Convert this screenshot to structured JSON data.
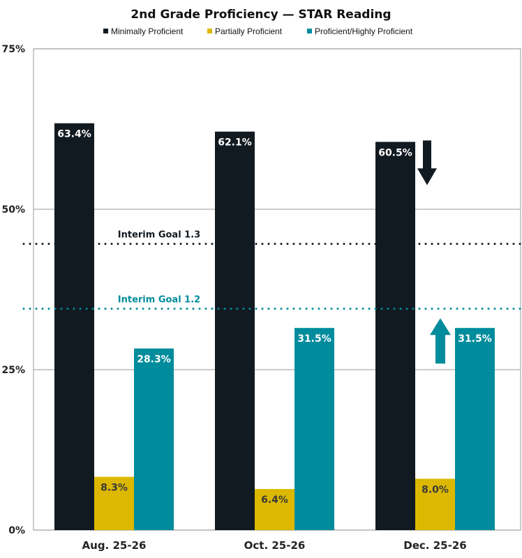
{
  "chart_data": {
    "type": "bar",
    "title": "2nd Grade Proficiency — STAR Reading",
    "categories": [
      "Aug. 25-26",
      "Oct. 25-26",
      "Dec. 25-26"
    ],
    "series": [
      {
        "name": "Minimally Proficient",
        "color": "#121a21",
        "label_color": "#ffffff",
        "values": [
          63.4,
          62.1,
          60.5
        ],
        "labels": [
          "63.4%",
          "62.1%",
          "60.5%"
        ]
      },
      {
        "name": "Partially Proficient",
        "color": "#dcb800",
        "label_color": "#3a3a3a",
        "values": [
          8.3,
          6.4,
          8.0
        ],
        "labels": [
          "8.3%",
          "6.4%",
          "8.0%"
        ]
      },
      {
        "name": "Proficient/Highly Proficient",
        "color": "#008c9c",
        "label_color": "#ffffff",
        "values": [
          28.3,
          31.5,
          31.5
        ],
        "labels": [
          "28.3%",
          "31.5%",
          "31.5%"
        ]
      }
    ],
    "ylim": [
      0,
      75
    ],
    "yticks": [
      0,
      25,
      50,
      75
    ],
    "ytick_labels": [
      "0%",
      "25%",
      "50%",
      "75%"
    ],
    "grid": true,
    "legend_position": "top",
    "reference_lines": [
      {
        "label": "Interim Goal 1.3",
        "value": 44.6,
        "color": "#121a21",
        "style": "dotted"
      },
      {
        "label": "Interim Goal 1.2",
        "value": 34.5,
        "color": "#008c9c",
        "style": "dotted"
      }
    ],
    "annotations": [
      {
        "icon": "arrow-down-icon",
        "category": "Dec. 25-26",
        "series": "Minimally Proficient",
        "color": "#121a21"
      },
      {
        "icon": "arrow-up-icon",
        "category": "Dec. 25-26",
        "series": "Proficient/Highly Proficient",
        "color": "#008c9c"
      }
    ]
  }
}
